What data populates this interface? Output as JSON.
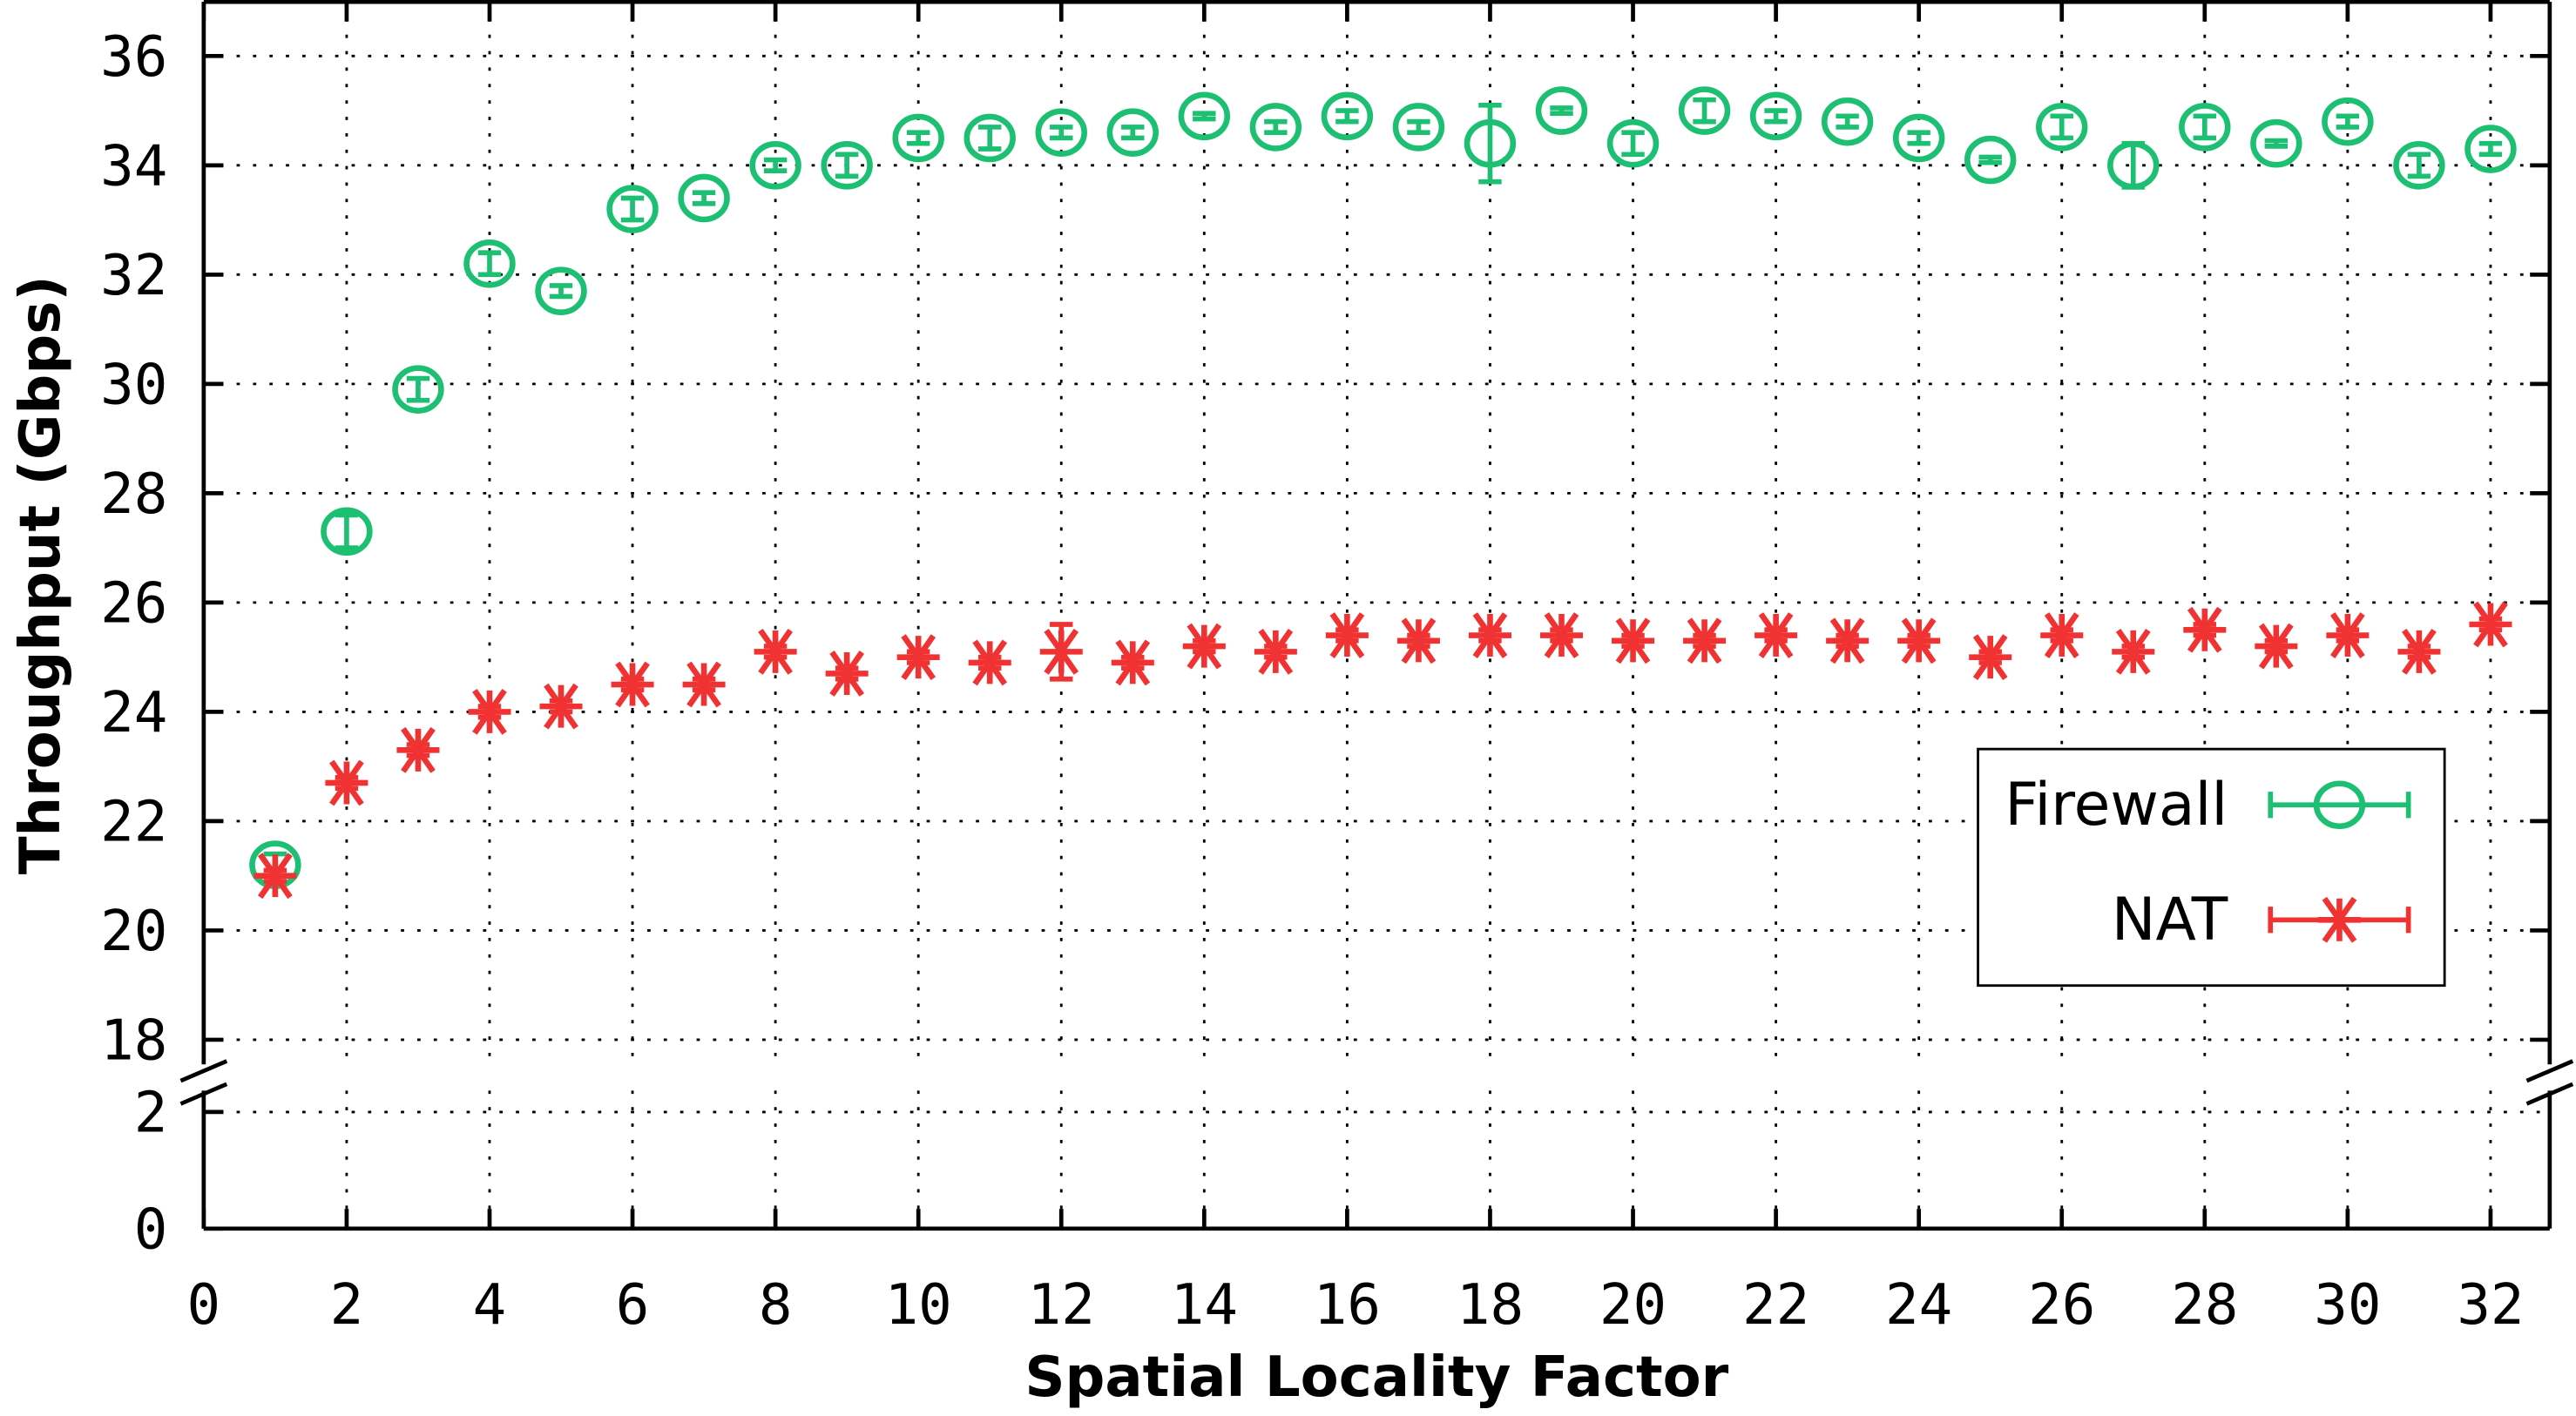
{
  "chart_data": {
    "type": "scatter",
    "title": "",
    "xlabel": "Spatial Locality Factor",
    "ylabel": "Throughput (Gbps)",
    "xlim": [
      0,
      33
    ],
    "ylim_upper": [
      18,
      37
    ],
    "ylim_lower": [
      0,
      2
    ],
    "axis_break": true,
    "grid": true,
    "legend_position": "lower-right",
    "xticks": [
      0,
      2,
      4,
      6,
      8,
      10,
      12,
      14,
      16,
      18,
      20,
      22,
      24,
      26,
      28,
      30,
      32
    ],
    "yticks_upper": [
      18,
      20,
      22,
      24,
      26,
      28,
      30,
      32,
      34,
      36
    ],
    "yticks_lower": [
      0,
      2
    ],
    "x": [
      1,
      2,
      3,
      4,
      5,
      6,
      7,
      8,
      9,
      10,
      11,
      12,
      13,
      14,
      15,
      16,
      17,
      18,
      19,
      20,
      21,
      22,
      23,
      24,
      25,
      26,
      27,
      28,
      29,
      30,
      31,
      32
    ],
    "series": [
      {
        "name": "Firewall",
        "color": "#1dbf73",
        "marker": "circle",
        "values": [
          21.2,
          27.3,
          29.9,
          32.2,
          31.7,
          33.2,
          33.4,
          34.0,
          34.0,
          34.5,
          34.5,
          34.6,
          34.6,
          34.9,
          34.7,
          34.9,
          34.7,
          34.4,
          35.0,
          34.4,
          35.0,
          34.9,
          34.8,
          34.5,
          34.1,
          34.7,
          34.0,
          34.7,
          34.4,
          34.8,
          34.0,
          34.3
        ],
        "errors": [
          0.2,
          0.3,
          0.2,
          0.2,
          0.1,
          0.2,
          0.1,
          0.1,
          0.2,
          0.1,
          0.2,
          0.1,
          0.1,
          0.05,
          0.1,
          0.1,
          0.1,
          0.7,
          0.05,
          0.2,
          0.2,
          0.1,
          0.1,
          0.1,
          0.05,
          0.2,
          0.4,
          0.2,
          0.05,
          0.1,
          0.2,
          0.1
        ]
      },
      {
        "name": "NAT",
        "color": "#f03232",
        "marker": "asterisk",
        "values": [
          21.0,
          22.7,
          23.3,
          24.0,
          24.1,
          24.5,
          24.5,
          25.1,
          24.7,
          25.0,
          24.9,
          25.1,
          24.9,
          25.2,
          25.1,
          25.4,
          25.3,
          25.4,
          25.4,
          25.3,
          25.3,
          25.4,
          25.3,
          25.3,
          25.0,
          25.4,
          25.1,
          25.5,
          25.2,
          25.4,
          25.1,
          25.6
        ],
        "errors": [
          0.1,
          0.1,
          0.1,
          0.1,
          0.1,
          0.1,
          0.1,
          0.1,
          0.1,
          0.1,
          0.1,
          0.5,
          0.1,
          0.1,
          0.1,
          0.1,
          0.1,
          0.1,
          0.1,
          0.1,
          0.1,
          0.1,
          0.1,
          0.1,
          0.1,
          0.1,
          0.1,
          0.1,
          0.1,
          0.1,
          0.1,
          0.1
        ]
      }
    ]
  }
}
